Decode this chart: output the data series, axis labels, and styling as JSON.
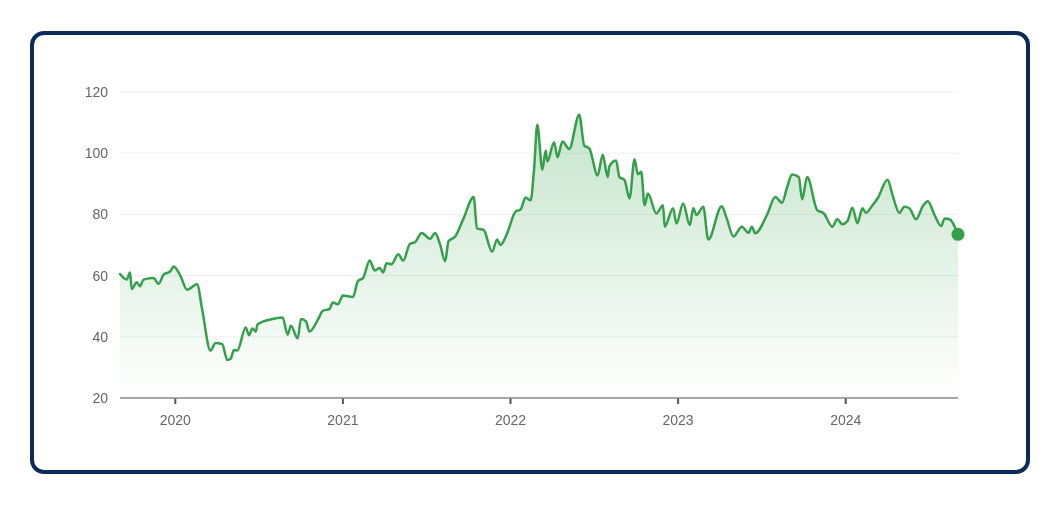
{
  "chart_data": {
    "type": "area",
    "xlim": [
      2019.67,
      2024.67
    ],
    "xticks": [
      2020,
      2021,
      2022,
      2023,
      2024
    ],
    "ylim": [
      20,
      120
    ],
    "yticks": [
      20,
      40,
      60,
      80,
      100,
      120
    ],
    "grid": "y",
    "series": [
      {
        "color": "#34a04a",
        "x": [
          2019.67,
          2019.71,
          2019.73,
          2019.74,
          2019.77,
          2019.79,
          2019.81,
          2019.87,
          2019.9,
          2019.93,
          2019.97,
          2019.99,
          2020.03,
          2020.07,
          2020.13,
          2020.16,
          2020.21,
          2020.24,
          2020.28,
          2020.31,
          2020.33,
          2020.35,
          2020.37,
          2020.42,
          2020.44,
          2020.46,
          2020.48,
          2020.49,
          2020.58,
          2020.64,
          2020.67,
          2020.69,
          2020.73,
          2020.75,
          2020.78,
          2020.8,
          2020.85,
          2020.88,
          2020.92,
          2020.94,
          2020.97,
          2021.0,
          2021.06,
          2021.09,
          2021.12,
          2021.16,
          2021.19,
          2021.22,
          2021.24,
          2021.26,
          2021.29,
          2021.33,
          2021.36,
          2021.4,
          2021.43,
          2021.47,
          2021.52,
          2021.55,
          2021.58,
          2021.61,
          2021.63,
          2021.67,
          2021.72,
          2021.78,
          2021.8,
          2021.84,
          2021.89,
          2021.92,
          2021.94,
          2021.98,
          2022.03,
          2022.06,
          2022.09,
          2022.12,
          2022.14,
          2022.16,
          2022.19,
          2022.21,
          2022.22,
          2022.26,
          2022.28,
          2022.31,
          2022.35,
          2022.41,
          2022.44,
          2022.47,
          2022.52,
          2022.55,
          2022.58,
          2022.59,
          2022.63,
          2022.65,
          2022.68,
          2022.71,
          2022.74,
          2022.76,
          2022.78,
          2022.8,
          2022.82,
          2022.87,
          2022.91,
          2022.92,
          2022.97,
          2022.99,
          2023.03,
          2023.07,
          2023.09,
          2023.11,
          2023.15,
          2023.18,
          2023.26,
          2023.29,
          2023.33,
          2023.38,
          2023.42,
          2023.44,
          2023.46,
          2023.53,
          2023.58,
          2023.62,
          2023.65,
          2023.68,
          2023.72,
          2023.74,
          2023.77,
          2023.83,
          2023.87,
          2023.92,
          2023.95,
          2023.98,
          2024.01,
          2024.04,
          2024.07,
          2024.1,
          2024.12,
          2024.16,
          2024.19,
          2024.25,
          2024.28,
          2024.32,
          2024.35,
          2024.38,
          2024.42,
          2024.46,
          2024.49,
          2024.53,
          2024.57,
          2024.59,
          2024.62,
          2024.67
        ],
        "values": [
          60.5,
          58.7,
          61,
          55.6,
          57.8,
          56.5,
          58.7,
          59.2,
          57.3,
          60.3,
          61.4,
          63,
          60,
          55.4,
          57.2,
          49,
          35.5,
          38,
          37.6,
          32.4,
          32.8,
          35.7,
          35.5,
          43,
          40.5,
          42.7,
          41.7,
          44,
          45.8,
          46.3,
          40.7,
          43.6,
          39.5,
          45.8,
          45,
          41.7,
          45.5,
          48.5,
          49.1,
          51.2,
          50.6,
          53.5,
          53,
          58.3,
          59.2,
          64.9,
          61.7,
          62.5,
          61,
          64,
          63.7,
          67,
          64.9,
          70.4,
          70.9,
          73.9,
          72,
          73.9,
          70.1,
          64.7,
          71.2,
          72.8,
          78.7,
          85.7,
          75.4,
          74.9,
          67.8,
          71.8,
          70,
          73.8,
          80.9,
          81.6,
          85.5,
          84.6,
          94.4,
          109.3,
          94.6,
          100.9,
          97.3,
          103.6,
          98.7,
          103.8,
          101.4,
          112.6,
          102.5,
          101.6,
          92.7,
          99.5,
          92.2,
          95.7,
          97.6,
          92.2,
          91.3,
          85.2,
          98,
          93.1,
          93.9,
          83,
          86.8,
          80.3,
          83,
          76,
          82,
          77,
          83.6,
          76.5,
          82,
          79.8,
          82.5,
          71.8,
          82.7,
          78.7,
          72.8,
          76,
          74,
          76,
          73.8,
          79.8,
          85.7,
          83.8,
          88.8,
          93,
          92.2,
          84.9,
          92.2,
          81.4,
          80.3,
          76,
          78.4,
          76.8,
          77.8,
          82.2,
          77.1,
          82,
          80.5,
          83,
          85.2,
          91.3,
          86.2,
          80.5,
          82.5,
          82,
          78.4,
          82.7,
          84.3,
          79.8,
          76.2,
          78.7,
          78.4,
          73.5
        ]
      },
      {
        "type": "scatter",
        "color": "#34a04a",
        "marker": "circle",
        "x": [
          2024.67
        ],
        "values": [
          73.5
        ]
      }
    ]
  }
}
